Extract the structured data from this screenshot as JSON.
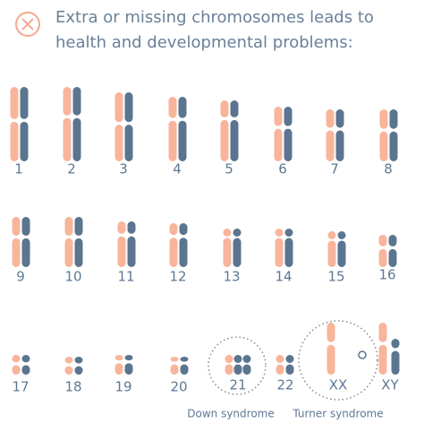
{
  "header": {
    "title_lines": [
      "Extra or missing chromosomes leads to",
      "health and developmental problems:"
    ]
  },
  "chromosomes": {
    "labels": [
      "1",
      "2",
      "3",
      "4",
      "5",
      "6",
      "7",
      "8",
      "9",
      "10",
      "11",
      "12",
      "13",
      "14",
      "15",
      "16",
      "17",
      "18",
      "19",
      "20",
      "21",
      "22",
      "XX",
      "XY"
    ]
  },
  "annotations": {
    "down": "Down syndrome",
    "turner": "Turner syndrome"
  }
}
